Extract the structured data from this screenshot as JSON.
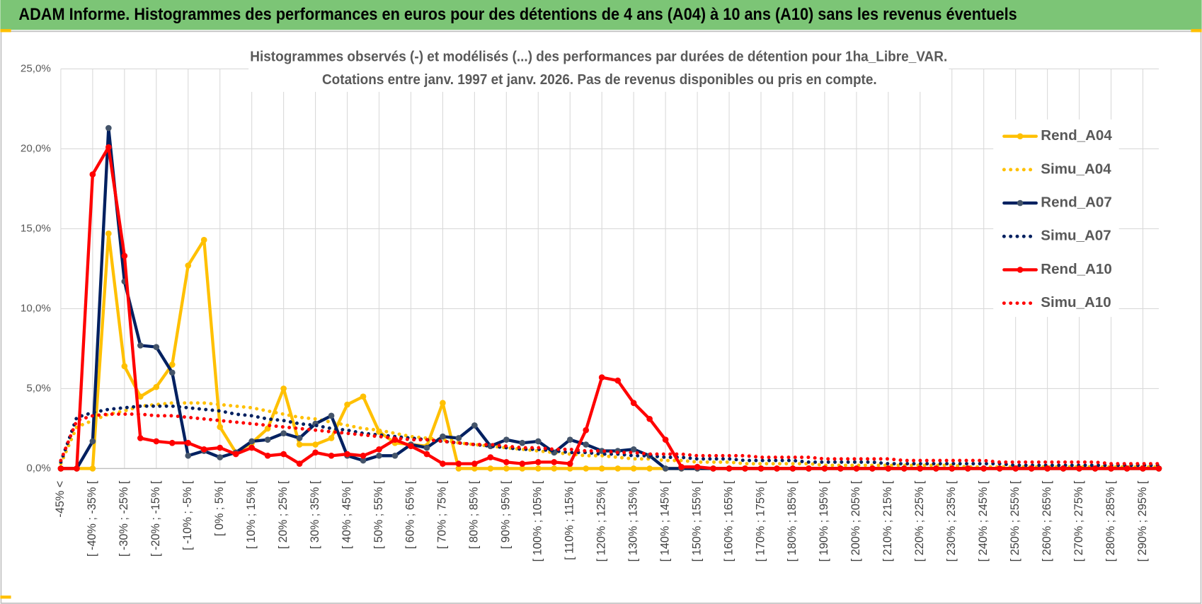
{
  "header": {
    "title": "ADAM Informe. Histogrammes des performances en euros pour des détentions de 4 ans (A04) à 10 ans (A10) sans les revenus éventuels"
  },
  "chart_data": {
    "type": "line",
    "title": "Histogrammes observés (-) et modélisés (...) des performances par durées de détention pour 1ha_Libre_VAR.",
    "subtitle": "Cotations entre janv. 1997 et janv. 2026. Pas de revenus disponibles ou pris en compte.",
    "categories": [
      "-45% <",
      null,
      "[ -40% ; -35% [",
      null,
      "[ -30% ; -25% [",
      null,
      "[ -20% ; -15% [",
      null,
      "[ -10% ; -5% [",
      null,
      "[ 0% ; 5% [",
      null,
      "[ 10% ; 15% [",
      null,
      "[ 20% ; 25% [",
      null,
      "[ 30% ; 35% [",
      null,
      "[ 40% ; 45% [",
      null,
      "[ 50% ; 55% [",
      null,
      "[ 60% ; 65% [",
      null,
      "[ 70% ; 75% [",
      null,
      "[ 80% ; 85% [",
      null,
      "[ 90% ; 95% [",
      null,
      "[ 100% ; 105% [",
      null,
      "[ 110% ; 115% [",
      null,
      "[ 120% ; 125% [",
      null,
      "[ 130% ; 135% [",
      null,
      "[ 140% ; 145% [",
      null,
      "[ 150% ; 155% [",
      null,
      "[ 160% ; 165% [",
      null,
      "[ 170% ; 175% [",
      null,
      "[ 180% ; 185% [",
      null,
      "[ 190% ; 195% [",
      null,
      "[ 200% ; 205% [",
      null,
      "[ 210% ; 215% [",
      null,
      "[ 220% ; 225% [",
      null,
      "[ 230% ; 235% [",
      null,
      "[ 240% ; 245% [",
      null,
      "[ 250% ; 255% [",
      null,
      "[ 260% ; 265% [",
      null,
      "[ 270% ; 275% [",
      null,
      "[ 280% ; 285% [",
      null,
      "[ 290% ; 295% [",
      null
    ],
    "series": [
      {
        "name": "Rend_A04",
        "color": "#FFC000",
        "marker_color": "#FFC000",
        "line_style": "solid",
        "values": [
          0,
          0,
          0,
          14.7,
          6.4,
          4.5,
          5.1,
          6.5,
          12.7,
          14.3,
          2.6,
          1.0,
          1.6,
          2.5,
          5.0,
          1.5,
          1.5,
          1.9,
          4.0,
          4.5,
          2.3,
          1.6,
          1.5,
          1.4,
          4.1,
          0,
          0,
          0,
          0,
          0,
          0,
          0,
          0,
          0,
          0,
          0,
          0,
          0,
          0,
          0,
          0,
          0,
          0,
          0,
          0,
          0,
          0,
          0,
          0,
          0,
          0,
          0,
          0,
          0,
          0,
          0,
          0,
          0,
          0,
          0,
          0,
          0,
          0,
          0,
          0,
          0,
          0,
          0,
          0,
          0
        ]
      },
      {
        "name": "Simu_A04",
        "color": "#FFC000",
        "line_style": "dotted",
        "values": [
          0.3,
          2.6,
          3.0,
          3.4,
          3.6,
          3.9,
          4.0,
          4.1,
          4.1,
          4.1,
          4.0,
          3.9,
          3.8,
          3.6,
          3.4,
          3.2,
          3.1,
          2.9,
          2.7,
          2.5,
          2.4,
          2.2,
          2.0,
          1.9,
          1.8,
          1.6,
          1.5,
          1.4,
          1.3,
          1.2,
          1.1,
          1.0,
          0.9,
          0.8,
          0.8,
          0.7,
          0.6,
          0.6,
          0.5,
          0.5,
          0.4,
          0.4,
          0.4,
          0.3,
          0.3,
          0.3,
          0.3,
          0.3,
          0.2,
          0.2,
          0.2,
          0.2,
          0.2,
          0.2,
          0.2,
          0.2,
          0.2,
          0.1,
          0.1,
          0.1,
          0.1,
          0.1,
          0.1,
          0.1,
          0.1,
          0.1,
          0.1,
          0.1,
          0.1,
          0.1
        ]
      },
      {
        "name": "Rend_A07",
        "color": "#002060",
        "marker_color": "#44546A",
        "line_style": "solid",
        "values": [
          0,
          0,
          1.7,
          21.3,
          11.7,
          7.7,
          7.6,
          6.0,
          0.8,
          1.1,
          0.7,
          1.0,
          1.7,
          1.8,
          2.2,
          1.9,
          2.8,
          3.3,
          0.8,
          0.5,
          0.8,
          0.8,
          1.5,
          1.3,
          2.0,
          1.9,
          2.7,
          1.4,
          1.8,
          1.6,
          1.7,
          1.0,
          1.8,
          1.5,
          1.1,
          1.1,
          1.2,
          0.8,
          0,
          0,
          0,
          0,
          0,
          0,
          0,
          0,
          0,
          0,
          0,
          0,
          0,
          0,
          0,
          0,
          0,
          0,
          0,
          0,
          0,
          0,
          0,
          0,
          0,
          0,
          0,
          0,
          0,
          0,
          0,
          0
        ]
      },
      {
        "name": "Simu_A07",
        "color": "#002060",
        "line_style": "dotted",
        "values": [
          0.4,
          3.2,
          3.5,
          3.7,
          3.8,
          3.9,
          3.9,
          3.9,
          3.8,
          3.7,
          3.6,
          3.4,
          3.3,
          3.1,
          3.0,
          2.8,
          2.7,
          2.5,
          2.4,
          2.2,
          2.1,
          2.0,
          1.9,
          1.8,
          1.7,
          1.6,
          1.5,
          1.4,
          1.3,
          1.2,
          1.2,
          1.1,
          1.0,
          1.0,
          0.9,
          0.9,
          0.8,
          0.8,
          0.7,
          0.7,
          0.6,
          0.6,
          0.6,
          0.5,
          0.5,
          0.5,
          0.5,
          0.4,
          0.4,
          0.4,
          0.4,
          0.4,
          0.3,
          0.3,
          0.3,
          0.3,
          0.3,
          0.3,
          0.3,
          0.3,
          0.2,
          0.2,
          0.2,
          0.2,
          0.2,
          0.2,
          0.2,
          0.2,
          0.2,
          0.2
        ]
      },
      {
        "name": "Rend_A10",
        "color": "#FF0000",
        "marker_color": "#FF0000",
        "line_style": "solid",
        "values": [
          0,
          0,
          18.4,
          20.1,
          13.3,
          1.9,
          1.7,
          1.6,
          1.6,
          1.2,
          1.3,
          0.9,
          1.3,
          0.8,
          0.9,
          0.3,
          1.0,
          0.8,
          0.9,
          0.8,
          1.2,
          1.8,
          1.4,
          0.9,
          0.3,
          0.3,
          0.3,
          0.7,
          0.4,
          0.3,
          0.4,
          0.4,
          0.3,
          2.4,
          5.7,
          5.5,
          4.1,
          3.1,
          1.8,
          0.1,
          0.1,
          0,
          0,
          0,
          0,
          0,
          0,
          0,
          0,
          0,
          0,
          0,
          0,
          0,
          0,
          0,
          0,
          0,
          0,
          0,
          0,
          0,
          0,
          0,
          0,
          0,
          0,
          0,
          0,
          0
        ]
      },
      {
        "name": "Simu_A10",
        "color": "#FF0000",
        "line_style": "dotted",
        "values": [
          0.5,
          3.0,
          3.3,
          3.4,
          3.4,
          3.4,
          3.3,
          3.3,
          3.2,
          3.1,
          3.0,
          2.9,
          2.8,
          2.7,
          2.6,
          2.5,
          2.4,
          2.3,
          2.2,
          2.1,
          2.0,
          1.9,
          1.8,
          1.8,
          1.7,
          1.6,
          1.5,
          1.5,
          1.4,
          1.3,
          1.3,
          1.2,
          1.2,
          1.1,
          1.1,
          1.0,
          1.0,
          0.9,
          0.9,
          0.9,
          0.8,
          0.8,
          0.8,
          0.8,
          0.7,
          0.7,
          0.7,
          0.7,
          0.6,
          0.6,
          0.6,
          0.6,
          0.6,
          0.5,
          0.5,
          0.5,
          0.5,
          0.5,
          0.5,
          0.4,
          0.4,
          0.4,
          0.4,
          0.4,
          0.4,
          0.4,
          0.3,
          0.3,
          0.3,
          0.3
        ]
      }
    ],
    "ylim": [
      0,
      25
    ],
    "yticks": [
      {
        "value": 0,
        "label": "0,0%"
      },
      {
        "value": 5,
        "label": "5,0%"
      },
      {
        "value": 10,
        "label": "10,0%"
      },
      {
        "value": 15,
        "label": "15,0%"
      },
      {
        "value": 20,
        "label": "20,0%"
      },
      {
        "value": 25,
        "label": "25,0%"
      }
    ],
    "grid": true,
    "legend": "right"
  }
}
